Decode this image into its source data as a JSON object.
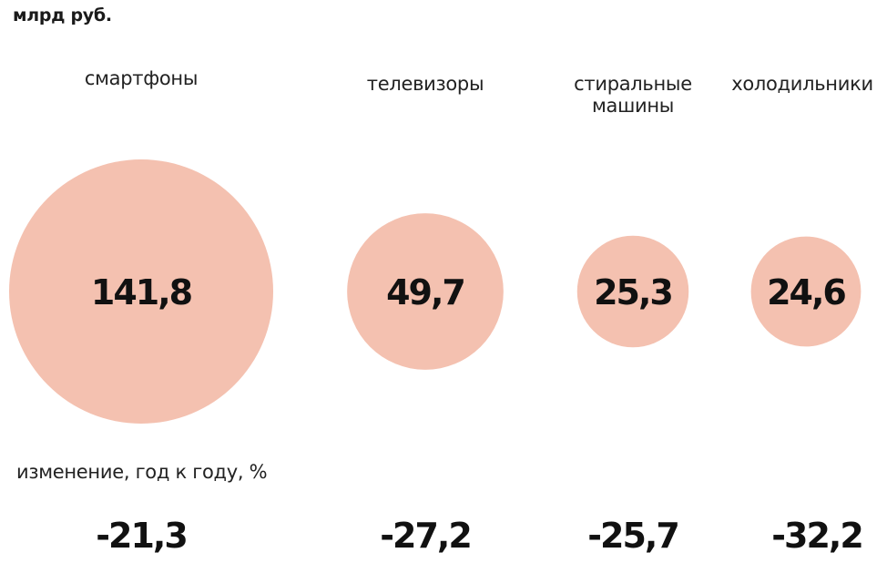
{
  "unit_label": "млрд руб.",
  "change_caption": "изменение, год к году, %",
  "chart_data": {
    "type": "bubble",
    "unit": "млрд руб.",
    "categories": [
      "смартфоны",
      "телевизоры",
      "стиральные\nмашины",
      "холодильники"
    ],
    "values": [
      141.8,
      49.7,
      25.3,
      24.6
    ],
    "value_labels": [
      "141,8",
      "49,7",
      "25,3",
      "24,6"
    ],
    "change_yoy_percent": [
      -21.3,
      -27.2,
      -25.7,
      -32.2
    ],
    "change_labels": [
      "-21,3",
      "-27,2",
      "-25,7",
      "-32,2"
    ],
    "bubble_color": "#f4c1b0"
  }
}
